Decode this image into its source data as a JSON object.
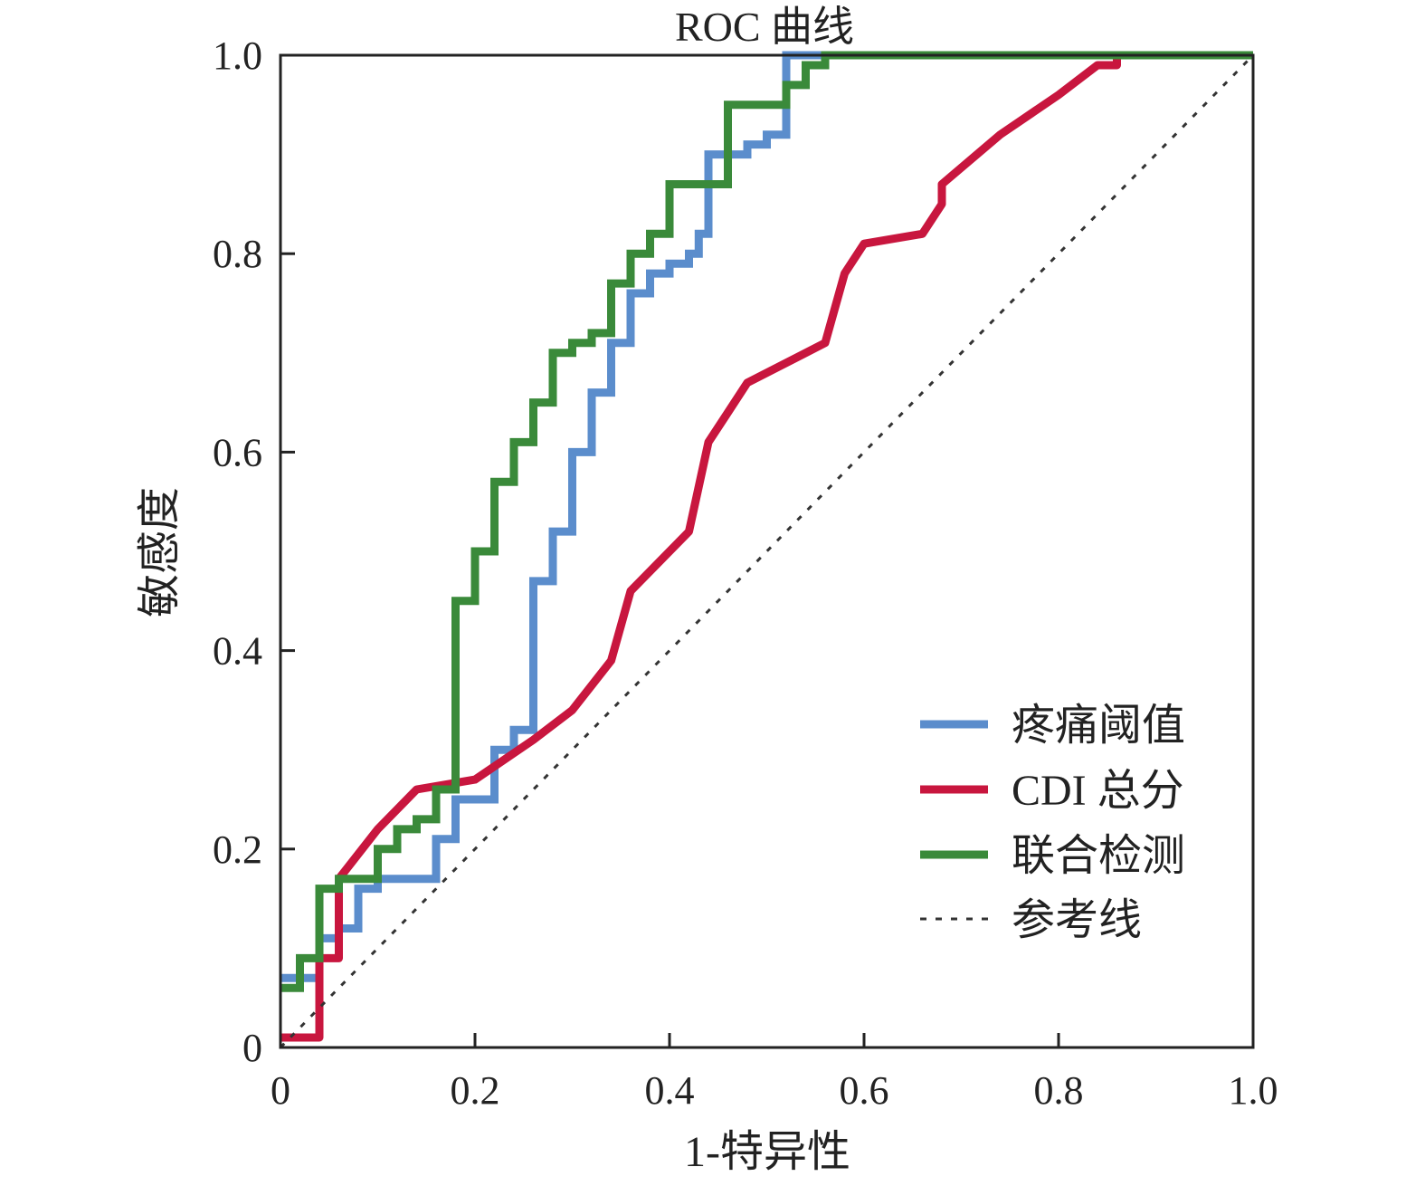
{
  "chart_data": {
    "type": "line",
    "title": "ROC 曲线",
    "xlabel": "1-特异性",
    "ylabel": "敏感度",
    "xlim": [
      0,
      1
    ],
    "ylim": [
      0,
      1
    ],
    "x_ticks": [
      "0",
      "0.2",
      "0.4",
      "0.6",
      "0.8",
      "1.0"
    ],
    "y_ticks": [
      "0",
      "0.2",
      "0.4",
      "0.6",
      "0.8",
      "1.0"
    ],
    "x_tick_values": [
      0,
      0.2,
      0.4,
      0.6,
      0.8,
      1.0
    ],
    "y_tick_values": [
      0,
      0.2,
      0.4,
      0.6,
      0.8,
      1.0
    ],
    "grid": false,
    "legend_position": "bottom-right",
    "series": [
      {
        "name": "疼痛阈值",
        "color": "#5b8dcc",
        "style": "step",
        "points": [
          [
            0,
            0.07
          ],
          [
            0.04,
            0.07
          ],
          [
            0.04,
            0.11
          ],
          [
            0.06,
            0.11
          ],
          [
            0.06,
            0.12
          ],
          [
            0.08,
            0.12
          ],
          [
            0.08,
            0.16
          ],
          [
            0.1,
            0.16
          ],
          [
            0.1,
            0.17
          ],
          [
            0.16,
            0.17
          ],
          [
            0.16,
            0.21
          ],
          [
            0.18,
            0.21
          ],
          [
            0.18,
            0.25
          ],
          [
            0.22,
            0.25
          ],
          [
            0.22,
            0.3
          ],
          [
            0.24,
            0.3
          ],
          [
            0.24,
            0.32
          ],
          [
            0.26,
            0.32
          ],
          [
            0.26,
            0.47
          ],
          [
            0.28,
            0.47
          ],
          [
            0.28,
            0.52
          ],
          [
            0.3,
            0.52
          ],
          [
            0.3,
            0.6
          ],
          [
            0.32,
            0.6
          ],
          [
            0.32,
            0.66
          ],
          [
            0.34,
            0.66
          ],
          [
            0.34,
            0.71
          ],
          [
            0.36,
            0.71
          ],
          [
            0.36,
            0.76
          ],
          [
            0.38,
            0.76
          ],
          [
            0.38,
            0.78
          ],
          [
            0.4,
            0.78
          ],
          [
            0.4,
            0.79
          ],
          [
            0.42,
            0.79
          ],
          [
            0.42,
            0.8
          ],
          [
            0.43,
            0.8
          ],
          [
            0.43,
            0.82
          ],
          [
            0.44,
            0.82
          ],
          [
            0.44,
            0.9
          ],
          [
            0.48,
            0.9
          ],
          [
            0.48,
            0.91
          ],
          [
            0.5,
            0.91
          ],
          [
            0.5,
            0.92
          ],
          [
            0.52,
            0.92
          ],
          [
            0.52,
            1.0
          ],
          [
            1,
            1
          ]
        ]
      },
      {
        "name": "CDI 总分",
        "color": "#c8163e",
        "style": "smooth",
        "points": [
          [
            0,
            0.01
          ],
          [
            0.04,
            0.01
          ],
          [
            0.04,
            0.09
          ],
          [
            0.06,
            0.09
          ],
          [
            0.06,
            0.17
          ],
          [
            0.1,
            0.22
          ],
          [
            0.14,
            0.26
          ],
          [
            0.2,
            0.27
          ],
          [
            0.26,
            0.31
          ],
          [
            0.3,
            0.34
          ],
          [
            0.34,
            0.39
          ],
          [
            0.36,
            0.46
          ],
          [
            0.42,
            0.52
          ],
          [
            0.44,
            0.61
          ],
          [
            0.46,
            0.64
          ],
          [
            0.48,
            0.67
          ],
          [
            0.56,
            0.71
          ],
          [
            0.58,
            0.78
          ],
          [
            0.6,
            0.81
          ],
          [
            0.66,
            0.82
          ],
          [
            0.68,
            0.85
          ],
          [
            0.68,
            0.87
          ],
          [
            0.74,
            0.92
          ],
          [
            0.8,
            0.96
          ],
          [
            0.84,
            0.99
          ],
          [
            0.86,
            0.99
          ],
          [
            0.86,
            1.0
          ],
          [
            1,
            1
          ]
        ]
      },
      {
        "name": "联合检测",
        "color": "#3a8a3a",
        "style": "step",
        "points": [
          [
            0,
            0.06
          ],
          [
            0.02,
            0.06
          ],
          [
            0.02,
            0.09
          ],
          [
            0.04,
            0.09
          ],
          [
            0.04,
            0.16
          ],
          [
            0.06,
            0.16
          ],
          [
            0.06,
            0.17
          ],
          [
            0.1,
            0.17
          ],
          [
            0.1,
            0.2
          ],
          [
            0.12,
            0.2
          ],
          [
            0.12,
            0.22
          ],
          [
            0.14,
            0.22
          ],
          [
            0.14,
            0.23
          ],
          [
            0.16,
            0.23
          ],
          [
            0.16,
            0.26
          ],
          [
            0.18,
            0.26
          ],
          [
            0.18,
            0.45
          ],
          [
            0.2,
            0.45
          ],
          [
            0.2,
            0.5
          ],
          [
            0.22,
            0.5
          ],
          [
            0.22,
            0.57
          ],
          [
            0.24,
            0.57
          ],
          [
            0.24,
            0.61
          ],
          [
            0.26,
            0.61
          ],
          [
            0.26,
            0.65
          ],
          [
            0.28,
            0.65
          ],
          [
            0.28,
            0.7
          ],
          [
            0.3,
            0.7
          ],
          [
            0.3,
            0.71
          ],
          [
            0.32,
            0.71
          ],
          [
            0.32,
            0.72
          ],
          [
            0.34,
            0.72
          ],
          [
            0.34,
            0.77
          ],
          [
            0.36,
            0.77
          ],
          [
            0.36,
            0.8
          ],
          [
            0.38,
            0.8
          ],
          [
            0.38,
            0.82
          ],
          [
            0.4,
            0.82
          ],
          [
            0.4,
            0.87
          ],
          [
            0.46,
            0.87
          ],
          [
            0.46,
            0.95
          ],
          [
            0.52,
            0.95
          ],
          [
            0.52,
            0.97
          ],
          [
            0.54,
            0.97
          ],
          [
            0.54,
            0.99
          ],
          [
            0.56,
            0.99
          ],
          [
            0.56,
            1.0
          ],
          [
            1,
            1
          ]
        ]
      },
      {
        "name": "参考线",
        "color": "#333333",
        "style": "dashed",
        "points": [
          [
            0,
            0
          ],
          [
            1,
            1
          ]
        ]
      }
    ]
  }
}
